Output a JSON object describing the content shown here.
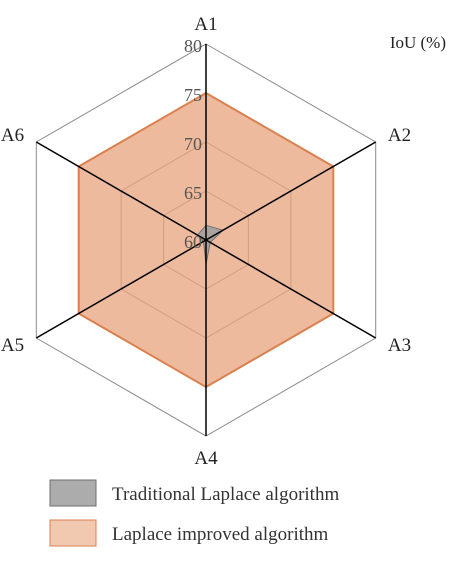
{
  "chart_data": {
    "type": "radar",
    "title": "",
    "unit_label": "IoU (%)",
    "axes": [
      "A1",
      "A2",
      "A3",
      "A4",
      "A5",
      "A6"
    ],
    "rmin": 60,
    "rmax": 80,
    "ticks": [
      60,
      65,
      70,
      75,
      80
    ],
    "grid": true,
    "legend_position": "bottom",
    "series": [
      {
        "name": "Traditional Laplace algorithm",
        "values": [
          61.5,
          62.0,
          60.5,
          62.5,
          60.3,
          61.0
        ],
        "fill": "#9e9e9e",
        "stroke": "#6e6e6e"
      },
      {
        "name": "Laplace improved algorithm",
        "values": [
          75.0,
          75.0,
          75.0,
          75.0,
          75.0,
          75.0
        ],
        "fill": "#e8a37c",
        "stroke": "#d9824f"
      }
    ]
  }
}
